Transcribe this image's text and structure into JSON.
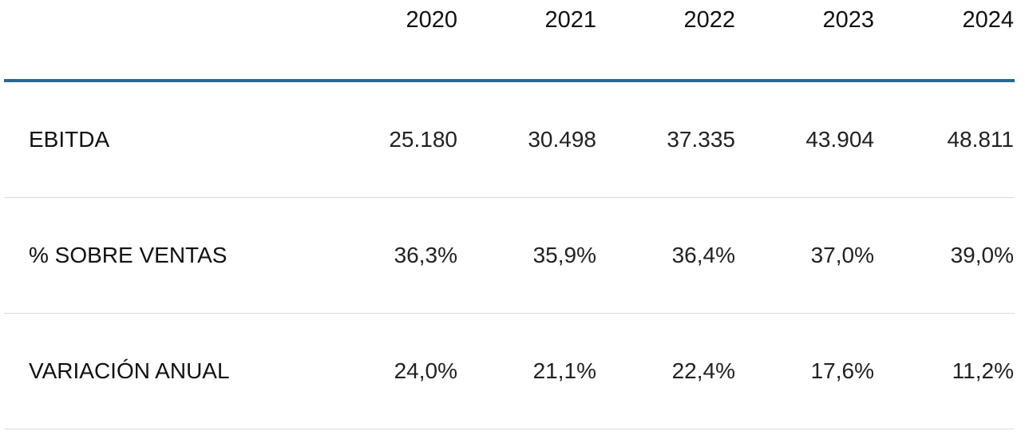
{
  "header": {
    "years": [
      "2020",
      "2021",
      "2022",
      "2023",
      "2024"
    ]
  },
  "rows": [
    {
      "label": "EBITDA",
      "values": [
        "25.180",
        "30.498",
        "37.335",
        "43.904",
        "48.811"
      ]
    },
    {
      "label": "% SOBRE VENTAS",
      "values": [
        "36,3%",
        "35,9%",
        "36,4%",
        "37,0%",
        "39,0%"
      ]
    },
    {
      "label": "VARIACIÓN ANUAL",
      "values": [
        "24,0%",
        "21,1%",
        "22,4%",
        "17,6%",
        "11,2%"
      ]
    }
  ],
  "colors": {
    "header_rule": "#2b6690",
    "row_divider": "#dcdcdc"
  }
}
